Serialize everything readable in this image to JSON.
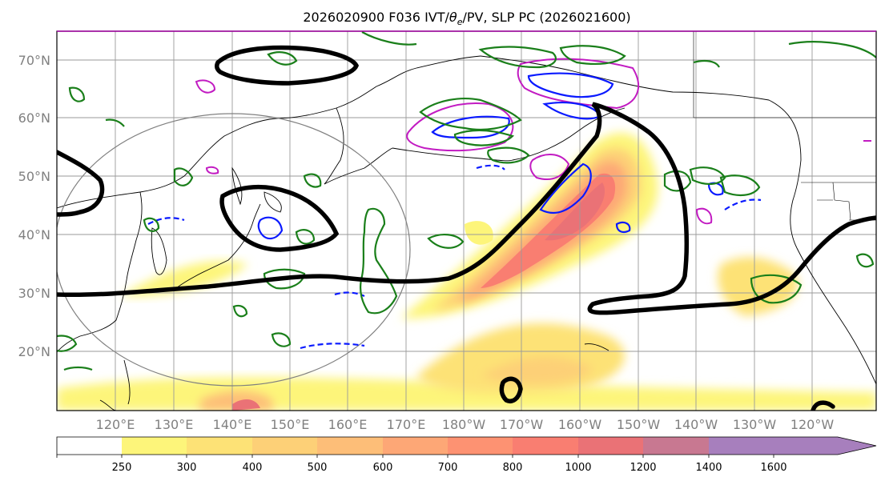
{
  "title": "2026020900 F036 IVT/θe/PV, SLP PC (2026021600)",
  "title_parts": {
    "prefix": "2026020900 F036 IVT/",
    "theta": "θ",
    "sub": "e",
    "suffix": "/PV, SLP PC (2026021600)"
  },
  "lat_labels": [
    "70°N",
    "60°N",
    "50°N",
    "40°N",
    "30°N",
    "20°N"
  ],
  "lon_labels": [
    "120°E",
    "130°E",
    "140°E",
    "150°E",
    "160°E",
    "170°E",
    "180°W",
    "170°W",
    "160°W",
    "150°W",
    "140°W",
    "130°W",
    "120°W"
  ],
  "colorbar": {
    "ticks": [
      "250",
      "300",
      "400",
      "500",
      "600",
      "700",
      "800",
      "1000",
      "1200",
      "1400",
      "1600"
    ],
    "colors": [
      "#ffffff",
      "#fdf57a",
      "#fde276",
      "#fdd077",
      "#fdbe78",
      "#fda776",
      "#fd9272",
      "#f97e71",
      "#ea7276",
      "#c87891",
      "#a77fbd"
    ]
  },
  "colors": {
    "slp_contour": "#000000",
    "pv_contour": "#1a7f1a",
    "theta_e_contour": "#0a1aff",
    "pv_anomaly": "#c21bc2",
    "coast": "#000000",
    "circle": "#808080"
  }
}
